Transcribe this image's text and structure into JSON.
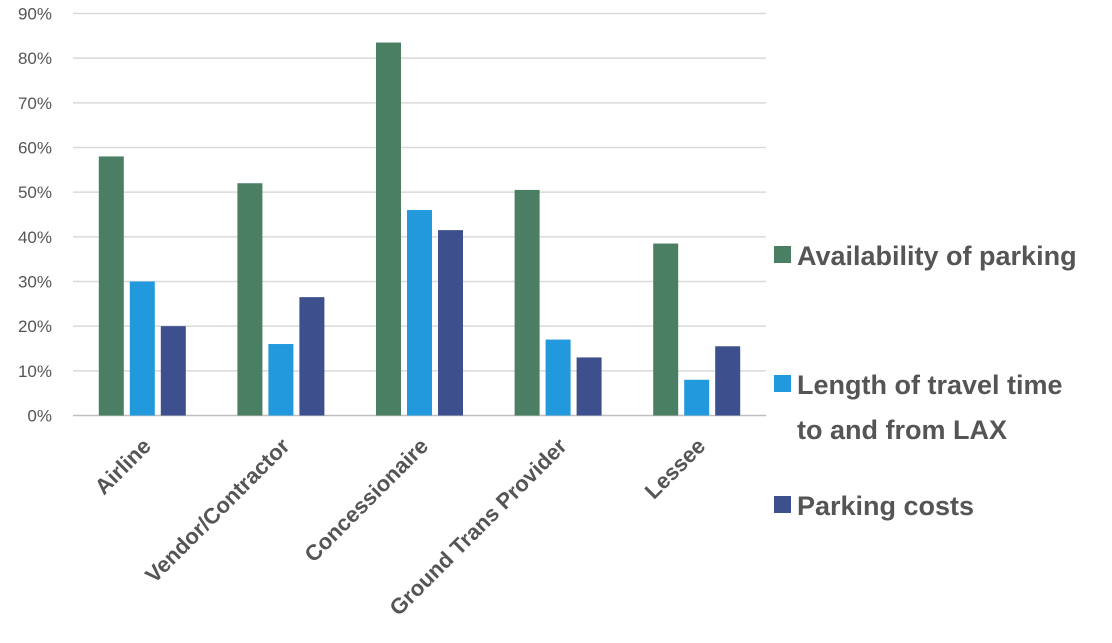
{
  "chart_data": {
    "type": "bar",
    "title": "",
    "xlabel": "",
    "ylabel": "",
    "ylim": [
      0,
      90
    ],
    "y_ticks": [
      "0%",
      "10%",
      "20%",
      "30%",
      "40%",
      "50%",
      "60%",
      "70%",
      "80%",
      "90%"
    ],
    "grid": "horizontal",
    "legend_position": "right",
    "categories": [
      "Airline",
      "Vendor/Contractor",
      "Concessionaire",
      "Ground Trans Provider",
      "Lessee"
    ],
    "series": [
      {
        "name": "Availability of parking",
        "color": "#4a7f64",
        "values": [
          58,
          52,
          83.5,
          50.5,
          38.5
        ]
      },
      {
        "name": "Length of travel time to and from LAX",
        "legend_lines": [
          "Length of travel time",
          "to and from LAX"
        ],
        "color": "#2299dd",
        "values": [
          30,
          16,
          46,
          17,
          8
        ]
      },
      {
        "name": "Parking costs",
        "color": "#3d4f8c",
        "values": [
          20,
          26.5,
          41.5,
          13,
          15.5
        ]
      }
    ]
  }
}
